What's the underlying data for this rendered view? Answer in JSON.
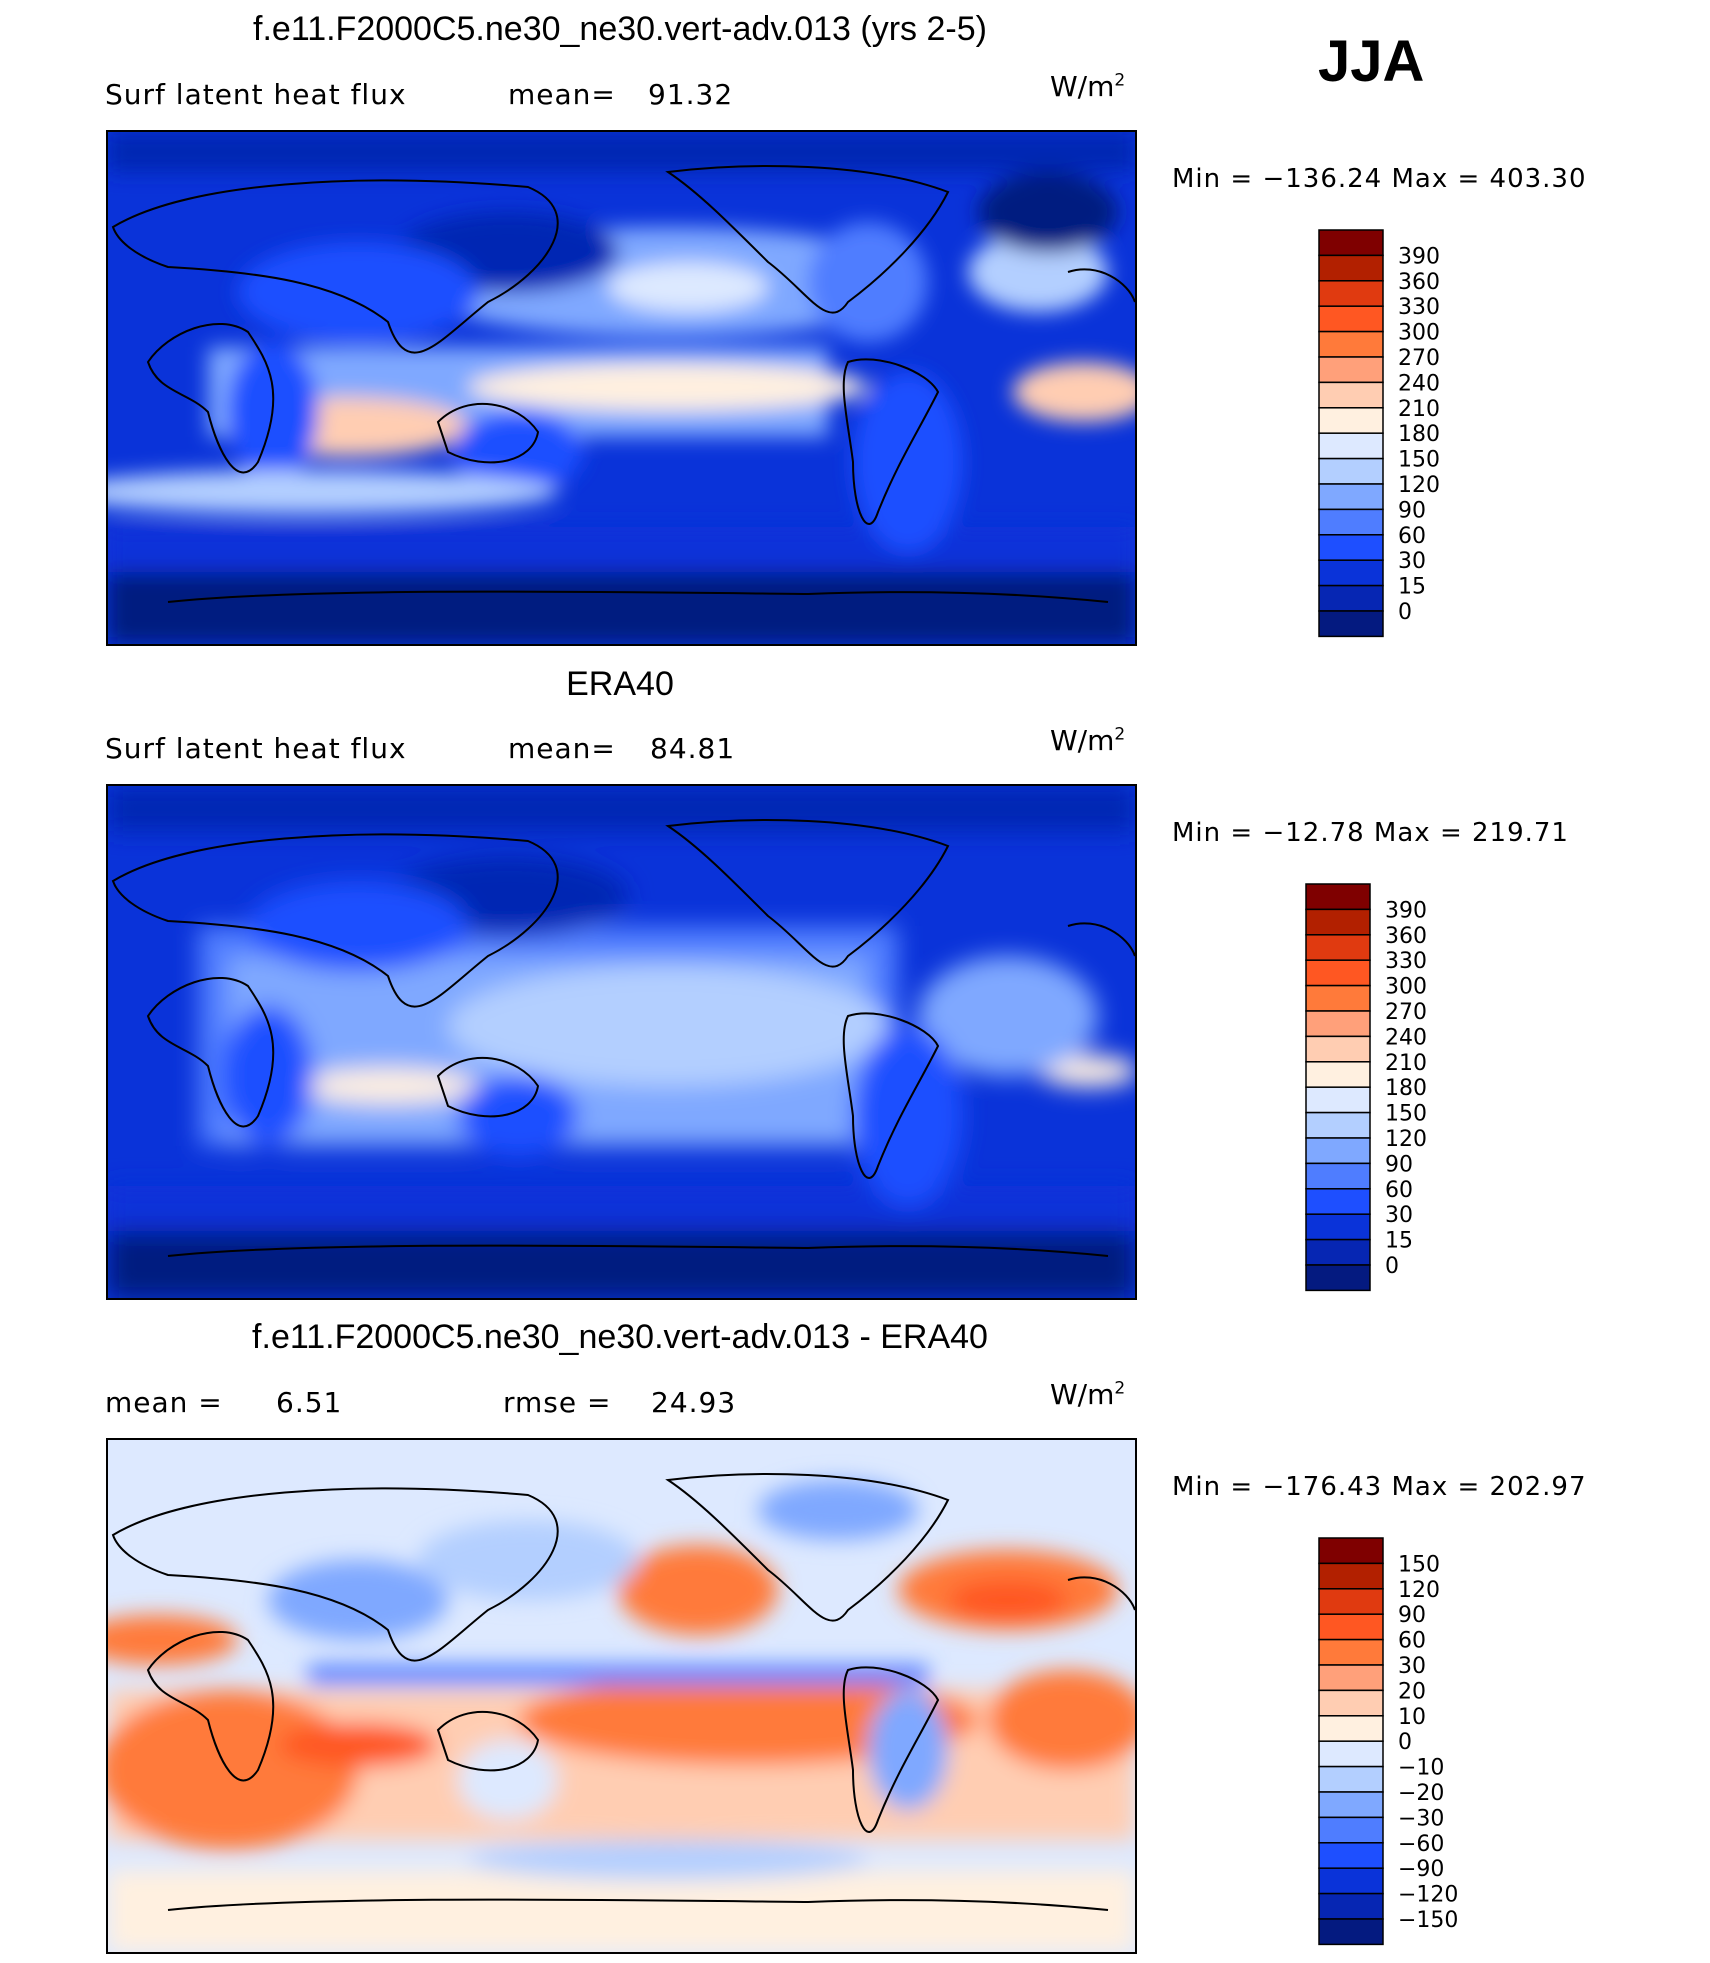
{
  "season": "JJA",
  "chart_data": [
    {
      "type": "heatmap",
      "title": "f.e11.F2000C5.ne30_ne30.vert-adv.013 (yrs 2-5)",
      "variable": "Surf latent heat flux",
      "stat1_label": "mean=",
      "stat1_value": "91.32",
      "stat2_label": "",
      "stat2_value": "",
      "units_base": "W/m",
      "units_exp": "2",
      "minmax": "Min = −136.24  Max = 403.30",
      "min": -136.24,
      "max": 403.3,
      "colorbar": {
        "levels": [
          "390",
          "360",
          "330",
          "300",
          "270",
          "240",
          "210",
          "180",
          "150",
          "120",
          "90",
          "60",
          "30",
          "15",
          "0"
        ],
        "colors": [
          "#7f0000",
          "#b22000",
          "#e03a10",
          "#ff5722",
          "#ff7a3a",
          "#ffa07a",
          "#ffcdb2",
          "#fff0e0",
          "#dde9ff",
          "#b3cfff",
          "#7fa8ff",
          "#4f7dff",
          "#1e4fff",
          "#0a33d9",
          "#0626b3",
          "#041a80"
        ]
      }
    },
    {
      "type": "heatmap",
      "title": "ERA40",
      "variable": "Surf latent heat flux",
      "stat1_label": "mean=",
      "stat1_value": "84.81",
      "stat2_label": "",
      "stat2_value": "",
      "units_base": "W/m",
      "units_exp": "2",
      "minmax": "Min = −12.78  Max = 219.71",
      "min": -12.78,
      "max": 219.71,
      "colorbar": {
        "levels": [
          "390",
          "360",
          "330",
          "300",
          "270",
          "240",
          "210",
          "180",
          "150",
          "120",
          "90",
          "60",
          "30",
          "15",
          "0"
        ],
        "colors": [
          "#7f0000",
          "#b22000",
          "#e03a10",
          "#ff5722",
          "#ff7a3a",
          "#ffa07a",
          "#ffcdb2",
          "#fff0e0",
          "#dde9ff",
          "#b3cfff",
          "#7fa8ff",
          "#4f7dff",
          "#1e4fff",
          "#0a33d9",
          "#0626b3",
          "#041a80"
        ]
      }
    },
    {
      "type": "heatmap",
      "title": "f.e11.F2000C5.ne30_ne30.vert-adv.013 - ERA40",
      "variable": "",
      "stat1_label": "mean =",
      "stat1_value": "6.51",
      "stat2_label": "rmse =",
      "stat2_value": "24.93",
      "units_base": "W/m",
      "units_exp": "2",
      "minmax": "Min = −176.43  Max = 202.97",
      "min": -176.43,
      "max": 202.97,
      "colorbar": {
        "levels": [
          "150",
          "120",
          "90",
          "60",
          "30",
          "20",
          "10",
          "0",
          "−10",
          "−20",
          "−30",
          "−60",
          "−90",
          "−120",
          "−150"
        ],
        "colors": [
          "#7f0000",
          "#b22000",
          "#e03a10",
          "#ff5722",
          "#ff7a3a",
          "#ffa07a",
          "#ffcdb2",
          "#fff0e0",
          "#dde9ff",
          "#b3cfff",
          "#7fa8ff",
          "#4f7dff",
          "#1e4fff",
          "#0a33d9",
          "#0626b3",
          "#041a80"
        ]
      }
    }
  ]
}
